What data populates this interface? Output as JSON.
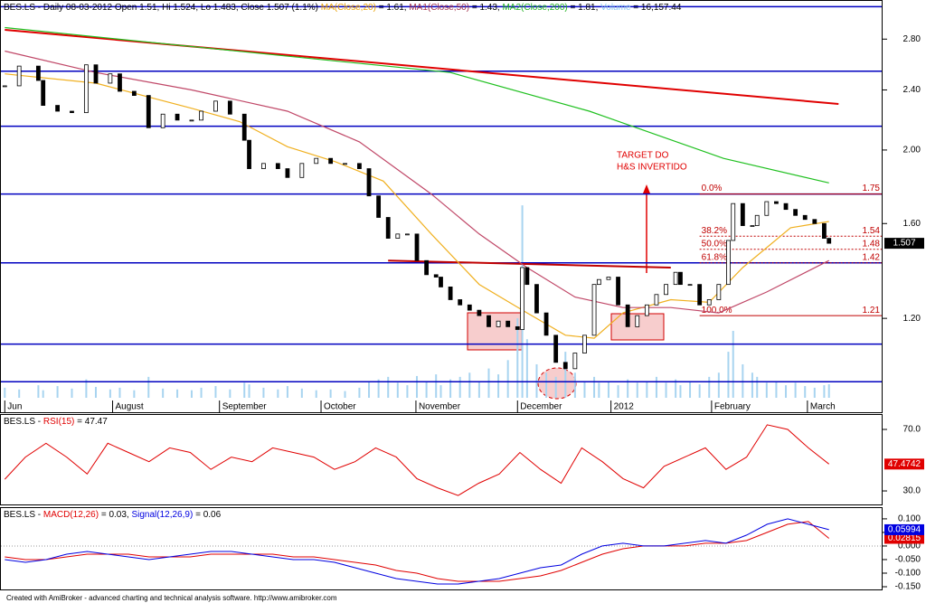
{
  "chart_data": [
    {
      "type": "price",
      "title_parts": [
        {
          "text": "BES.LS - Daily 08-03-2012 Open 1.51, Hi 1.524, Lo 1.483, Close 1.507 (1.1%) ",
          "color": "#000000"
        },
        {
          "text": "MA(Close,20)",
          "color": "#e8a000"
        },
        {
          "text": " = 1.61, ",
          "color": "#000000"
        },
        {
          "text": "MA1(Close,50)",
          "color": "#a0304a"
        },
        {
          "text": " = 1.43, ",
          "color": "#000000"
        },
        {
          "text": "MA2(Close,200)",
          "color": "#20b020"
        },
        {
          "text": " = 1.81, ",
          "color": "#000000"
        },
        {
          "text": "Volume",
          "color": "#8cc8f0"
        },
        {
          "text": " = 16,157.44",
          "color": "#000000"
        }
      ],
      "xlim": [
        0,
        184
      ],
      "xticks": [
        {
          "value": 1,
          "label": "Jun"
        },
        {
          "value": 23.5,
          "label": "August"
        },
        {
          "value": 45.8,
          "label": "September"
        },
        {
          "value": 67,
          "label": "October"
        },
        {
          "value": 86.8,
          "label": "November"
        },
        {
          "value": 108,
          "label": "December"
        },
        {
          "value": 127.5,
          "label": "2012"
        },
        {
          "value": 148.5,
          "label": "February"
        },
        {
          "value": 168.5,
          "label": "March"
        }
      ],
      "ylim": [
        0.943,
        3.11
      ],
      "log_scale": true,
      "yticks": [
        {
          "value": 2.8,
          "label": "2.80"
        },
        {
          "value": 2.4,
          "label": "2.40"
        },
        {
          "value": 2.0,
          "label": "2.00"
        },
        {
          "value": 1.6,
          "label": "1.60"
        },
        {
          "value": 1.2,
          "label": "1.20"
        }
      ],
      "x": [
        1,
        4,
        8,
        9,
        12,
        15,
        18,
        20,
        23,
        25,
        28,
        31,
        34,
        37,
        40,
        42,
        45,
        48,
        51,
        52,
        55,
        58,
        60,
        63,
        66,
        69,
        72,
        75,
        77,
        79,
        81,
        83,
        85,
        87,
        89,
        91,
        92,
        94,
        96,
        98,
        100,
        102,
        104,
        106,
        108,
        109,
        110,
        112,
        114,
        116,
        118,
        120,
        122,
        124,
        125,
        127,
        129,
        131,
        133,
        135,
        137,
        139,
        141,
        142,
        144,
        146,
        148,
        150,
        152,
        153,
        155,
        157,
        158,
        160,
        162,
        164,
        166,
        168,
        170,
        172,
        173
      ],
      "close": [
        2.43,
        2.58,
        2.47,
        2.29,
        2.25,
        2.24,
        2.59,
        2.45,
        2.52,
        2.39,
        2.36,
        2.14,
        2.23,
        2.19,
        2.19,
        2.25,
        2.32,
        2.23,
        2.06,
        1.89,
        1.92,
        1.89,
        1.84,
        1.92,
        1.95,
        1.92,
        1.92,
        1.89,
        1.74,
        1.63,
        1.53,
        1.55,
        1.55,
        1.43,
        1.37,
        1.36,
        1.32,
        1.27,
        1.25,
        1.23,
        1.21,
        1.17,
        1.19,
        1.17,
        1.16,
        1.4,
        1.33,
        1.22,
        1.14,
        1.05,
        1.03,
        1.08,
        1.14,
        1.33,
        1.35,
        1.36,
        1.25,
        1.17,
        1.21,
        1.25,
        1.29,
        1.33,
        1.38,
        1.33,
        1.33,
        1.25,
        1.27,
        1.33,
        1.52,
        1.7,
        1.59,
        1.59,
        1.64,
        1.71,
        1.7,
        1.67,
        1.64,
        1.62,
        1.6,
        1.53,
        1.507
      ],
      "volume": [
        12000,
        10000,
        15000,
        9000,
        14000,
        11000,
        22000,
        13000,
        10000,
        12000,
        9000,
        25000,
        11000,
        10000,
        9000,
        12000,
        14000,
        10000,
        18000,
        16000,
        12000,
        10000,
        14000,
        11000,
        9000,
        10000,
        8000,
        12000,
        20000,
        22000,
        25000,
        18000,
        15000,
        26000,
        20000,
        28000,
        15000,
        22000,
        25000,
        30000,
        20000,
        35000,
        28000,
        45000,
        95000,
        230000,
        70000,
        40000,
        30000,
        25000,
        55000,
        30000,
        20000,
        25000,
        18000,
        20000,
        15000,
        22000,
        18000,
        20000,
        25000,
        18000,
        22000,
        15000,
        20000,
        16000,
        25000,
        30000,
        55000,
        80000,
        40000,
        30000,
        25000,
        18000,
        20000,
        15000,
        18000,
        14000,
        12000,
        15000,
        16157.44
      ],
      "volume_ylim": [
        0,
        470000
      ],
      "volume_color": "#a8d4f0",
      "ma": [
        {
          "name": "MA(Close,20)",
          "color": "#f0b020",
          "x": [
            1,
            20,
            40,
            50,
            60,
            70,
            80,
            90,
            100,
            110,
            118,
            124,
            130,
            140,
            148,
            155,
            165,
            173
          ],
          "values": [
            2.52,
            2.45,
            2.27,
            2.18,
            2.02,
            1.93,
            1.82,
            1.55,
            1.33,
            1.22,
            1.14,
            1.13,
            1.22,
            1.27,
            1.26,
            1.4,
            1.58,
            1.61
          ]
        },
        {
          "name": "MA1(Close,50)",
          "color": "#c04868",
          "x": [
            1,
            20,
            40,
            60,
            75,
            90,
            100,
            110,
            120,
            130,
            140,
            150,
            160,
            173
          ],
          "values": [
            2.7,
            2.53,
            2.4,
            2.25,
            2.05,
            1.75,
            1.55,
            1.4,
            1.28,
            1.24,
            1.24,
            1.22,
            1.3,
            1.43
          ]
        },
        {
          "name": "MA2(Close,200)",
          "color": "#20c020",
          "x": [
            1,
            47,
            94,
            123,
            151,
            173
          ],
          "values": [
            2.9,
            2.71,
            2.53,
            2.25,
            1.95,
            1.81
          ]
        }
      ],
      "levels": [
        3.09,
        2.54,
        2.15,
        1.75,
        1.42,
        1.11,
        0.99
      ],
      "level_color": "#0000c0",
      "trendlines": [
        {
          "x": [
            1,
            175
          ],
          "values": [
            2.88,
            2.3
          ],
          "color": "#e00000"
        },
        {
          "x": [
            81,
            140
          ],
          "values": [
            1.43,
            1.4
          ],
          "color": "#c00000"
        }
      ],
      "fib_from": 146,
      "fib": [
        {
          "label": "0.0%",
          "value": 1.75
        },
        {
          "label": "38.2%",
          "value": 1.54
        },
        {
          "label": "50.0%",
          "value": 1.48
        },
        {
          "label": "61.8%",
          "value": 1.42
        },
        {
          "label": "100.0%",
          "value": 1.21
        }
      ],
      "annotation": [
        "TARGET DO",
        "H&S INVERTIDO"
      ]
    },
    {
      "type": "rsi",
      "title_parts": [
        {
          "text": "BES.LS - ",
          "color": "#000000"
        },
        {
          "text": "RSI(15)",
          "color": "#e00000"
        },
        {
          "text": " = 47.47",
          "color": "#000000"
        }
      ],
      "ylim": [
        21.2,
        80
      ],
      "yticks": [
        {
          "value": 70,
          "label": "70.0"
        },
        {
          "value": 30,
          "label": "30.0"
        }
      ],
      "series": [
        {
          "color": "#e00000",
          "values": [
            37.6,
            52,
            61,
            52,
            41,
            61,
            55,
            49,
            58,
            55,
            44,
            52,
            49,
            58,
            55,
            52,
            44,
            49,
            58,
            52,
            38,
            32,
            27,
            35,
            41,
            55,
            44,
            35,
            58,
            49,
            38,
            32,
            46,
            52,
            58,
            44,
            52,
            73,
            70,
            58,
            47.4742
          ]
        }
      ]
    },
    {
      "type": "macd",
      "title_parts": [
        {
          "text": "BES.LS - ",
          "color": "#000000"
        },
        {
          "text": "MACD(12,26)",
          "color": "#e00000"
        },
        {
          "text": " = 0.03, ",
          "color": "#000000"
        },
        {
          "text": "Signal(12,26,9)",
          "color": "#0000e0"
        },
        {
          "text": " = 0.06",
          "color": "#000000"
        }
      ],
      "ylim": [
        -0.16,
        0.143
      ],
      "yticks": [
        {
          "value": 0.1,
          "label": "0.100"
        },
        {
          "value": 0.05,
          "label": "0.050"
        },
        {
          "value": 0,
          "label": "0.000"
        },
        {
          "value": -0.05,
          "label": "-0.050"
        },
        {
          "value": -0.1,
          "label": "-0.100"
        },
        {
          "value": -0.15,
          "label": "-0.150"
        }
      ],
      "series": [
        {
          "color": "#e00000",
          "values": [
            -0.04,
            -0.05,
            -0.05,
            -0.04,
            -0.03,
            -0.03,
            -0.03,
            -0.04,
            -0.04,
            -0.04,
            -0.03,
            -0.03,
            -0.03,
            -0.03,
            -0.04,
            -0.04,
            -0.05,
            -0.06,
            -0.07,
            -0.09,
            -0.1,
            -0.12,
            -0.13,
            -0.13,
            -0.13,
            -0.12,
            -0.11,
            -0.09,
            -0.06,
            -0.03,
            -0.01,
            0.0,
            0.0,
            0.0,
            0.01,
            0.01,
            0.02,
            0.05,
            0.08,
            0.09,
            0.02815
          ]
        },
        {
          "color": "#0000e0",
          "values": [
            -0.05,
            -0.06,
            -0.05,
            -0.03,
            -0.02,
            -0.03,
            -0.04,
            -0.05,
            -0.04,
            -0.03,
            -0.02,
            -0.02,
            -0.03,
            -0.04,
            -0.05,
            -0.05,
            -0.06,
            -0.08,
            -0.1,
            -0.12,
            -0.13,
            -0.14,
            -0.14,
            -0.13,
            -0.12,
            -0.1,
            -0.08,
            -0.07,
            -0.03,
            0.0,
            0.01,
            0.0,
            0.0,
            0.01,
            0.02,
            0.01,
            0.04,
            0.08,
            0.1,
            0.08,
            0.05994
          ]
        }
      ]
    }
  ],
  "footer": "Created with AmiBroker - advanced charting and technical analysis software. http://www.amibroker.com"
}
